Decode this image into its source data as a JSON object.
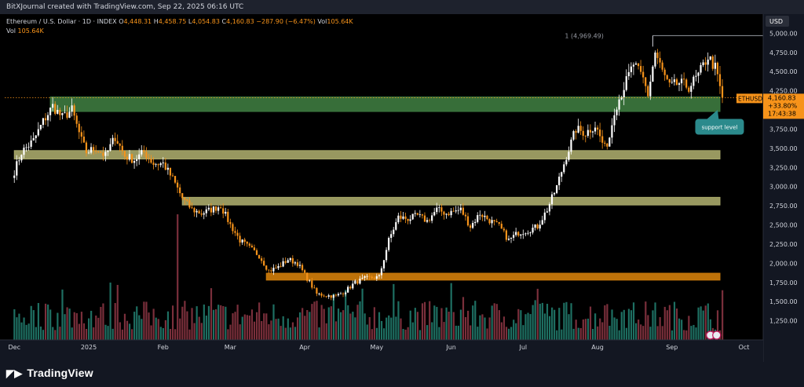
{
  "header": {
    "text": "BitXJournal created with TradingView.com, Sep 22, 2025 06:16 UTC"
  },
  "legend": {
    "symbol": "Ethereum / U.S. Dollar · 1D · INDEX",
    "open_label": "O",
    "open": "4,448.31",
    "high_label": "H",
    "high": "4,458.75",
    "low_label": "L",
    "low": "4,054.83",
    "close_label": "C",
    "close": "4,160.83",
    "change": "−287.90 (−6.47%)",
    "vol_label": "Vol",
    "vol": "105.64K",
    "vol_line_label": "Vol",
    "vol_line_value": "105.64K"
  },
  "footer": {
    "brand": "TradingView"
  },
  "colors": {
    "up": "#ffffff",
    "down": "#f7931a",
    "vol_up": "#1e6f62",
    "vol_down": "#7a2f3b",
    "zone_green": "#3d7a3f",
    "zone_khaki": "#a8a86a",
    "zone_orange": "#c8780a",
    "price_line": "#f7931a",
    "axis_bg": "#131722",
    "annotation": "#2b8a8c"
  },
  "chart_data": {
    "type": "candlestick",
    "title": "Ethereum / U.S. Dollar · 1D · INDEX",
    "currency": "USD",
    "ylim": [
      1000,
      5250
    ],
    "y_ticks": [
      1250,
      1500,
      1750,
      2000,
      2250,
      2500,
      2750,
      3000,
      3250,
      3500,
      3750,
      4000,
      4250,
      4500,
      4750,
      5000
    ],
    "y_tick_labels": [
      "1,250.00",
      "1,500.00",
      "1,750.00",
      "2,000.00",
      "2,250.00",
      "2,500.00",
      "2,750.00",
      "3,000.00",
      "3,250.00",
      "3,500.00",
      "3,750.00",
      "4,000.00",
      "4,250.00",
      "4,500.00",
      "4,750.00",
      "5,000.00"
    ],
    "x_labels": [
      "Dec",
      "2025",
      "Feb",
      "Mar",
      "Apr",
      "May",
      "Jun",
      "Jul",
      "Aug",
      "Sep",
      "Oct"
    ],
    "x_label_days": [
      0,
      31,
      62,
      90,
      121,
      151,
      182,
      212,
      243,
      274,
      304
    ],
    "first_day": 0,
    "last_day": 295,
    "last_price": {
      "symbol": "ETHUSD",
      "price": "4,160.83",
      "change": "+33.80%",
      "countdown": "17:43:38",
      "value": 4160.83
    },
    "high_marker": {
      "label": "1 (4,969.49)",
      "value": 4969.49,
      "day": 266
    },
    "annotation": {
      "text": "support level"
    },
    "zones": [
      {
        "color": "green",
        "low": 3980,
        "high": 4170,
        "start_day": 15,
        "end_day": 310
      },
      {
        "color": "khaki",
        "low": 3360,
        "high": 3470,
        "start_day": 0,
        "end_day": 310
      },
      {
        "color": "khaki",
        "low": 2760,
        "high": 2860,
        "start_day": 70,
        "end_day": 310
      },
      {
        "color": "orange",
        "low": 1780,
        "high": 1870,
        "start_day": 105,
        "end_day": 310
      }
    ],
    "price_anchors": [
      [
        0,
        3200
      ],
      [
        3,
        3450
      ],
      [
        8,
        3600
      ],
      [
        12,
        3850
      ],
      [
        16,
        4050
      ],
      [
        20,
        3900
      ],
      [
        24,
        4000
      ],
      [
        28,
        3600
      ],
      [
        30,
        3450
      ],
      [
        34,
        3500
      ],
      [
        38,
        3400
      ],
      [
        42,
        3650
      ],
      [
        46,
        3400
      ],
      [
        50,
        3350
      ],
      [
        54,
        3450
      ],
      [
        58,
        3300
      ],
      [
        62,
        3300
      ],
      [
        66,
        3100
      ],
      [
        70,
        2850
      ],
      [
        74,
        2700
      ],
      [
        78,
        2650
      ],
      [
        82,
        2700
      ],
      [
        86,
        2750
      ],
      [
        90,
        2500
      ],
      [
        94,
        2300
      ],
      [
        98,
        2200
      ],
      [
        102,
        2100
      ],
      [
        106,
        1900
      ],
      [
        110,
        1950
      ],
      [
        114,
        2050
      ],
      [
        118,
        2000
      ],
      [
        122,
        1800
      ],
      [
        126,
        1600
      ],
      [
        130,
        1580
      ],
      [
        134,
        1570
      ],
      [
        138,
        1640
      ],
      [
        142,
        1750
      ],
      [
        146,
        1800
      ],
      [
        152,
        1820
      ],
      [
        156,
        2300
      ],
      [
        160,
        2600
      ],
      [
        164,
        2580
      ],
      [
        168,
        2620
      ],
      [
        172,
        2550
      ],
      [
        176,
        2700
      ],
      [
        180,
        2650
      ],
      [
        186,
        2700
      ],
      [
        190,
        2480
      ],
      [
        194,
        2650
      ],
      [
        198,
        2560
      ],
      [
        202,
        2480
      ],
      [
        206,
        2300
      ],
      [
        210,
        2400
      ],
      [
        214,
        2430
      ],
      [
        218,
        2480
      ],
      [
        222,
        2700
      ],
      [
        226,
        3000
      ],
      [
        230,
        3400
      ],
      [
        234,
        3750
      ],
      [
        238,
        3700
      ],
      [
        242,
        3800
      ],
      [
        246,
        3500
      ],
      [
        248,
        3650
      ],
      [
        250,
        4000
      ],
      [
        254,
        4300
      ],
      [
        258,
        4600
      ],
      [
        262,
        4400
      ],
      [
        264,
        4200
      ],
      [
        267,
        4750
      ],
      [
        270,
        4500
      ],
      [
        273,
        4300
      ],
      [
        277,
        4350
      ],
      [
        281,
        4300
      ],
      [
        285,
        4450
      ],
      [
        289,
        4700
      ],
      [
        292,
        4550
      ],
      [
        295,
        4160.83
      ]
    ]
  }
}
